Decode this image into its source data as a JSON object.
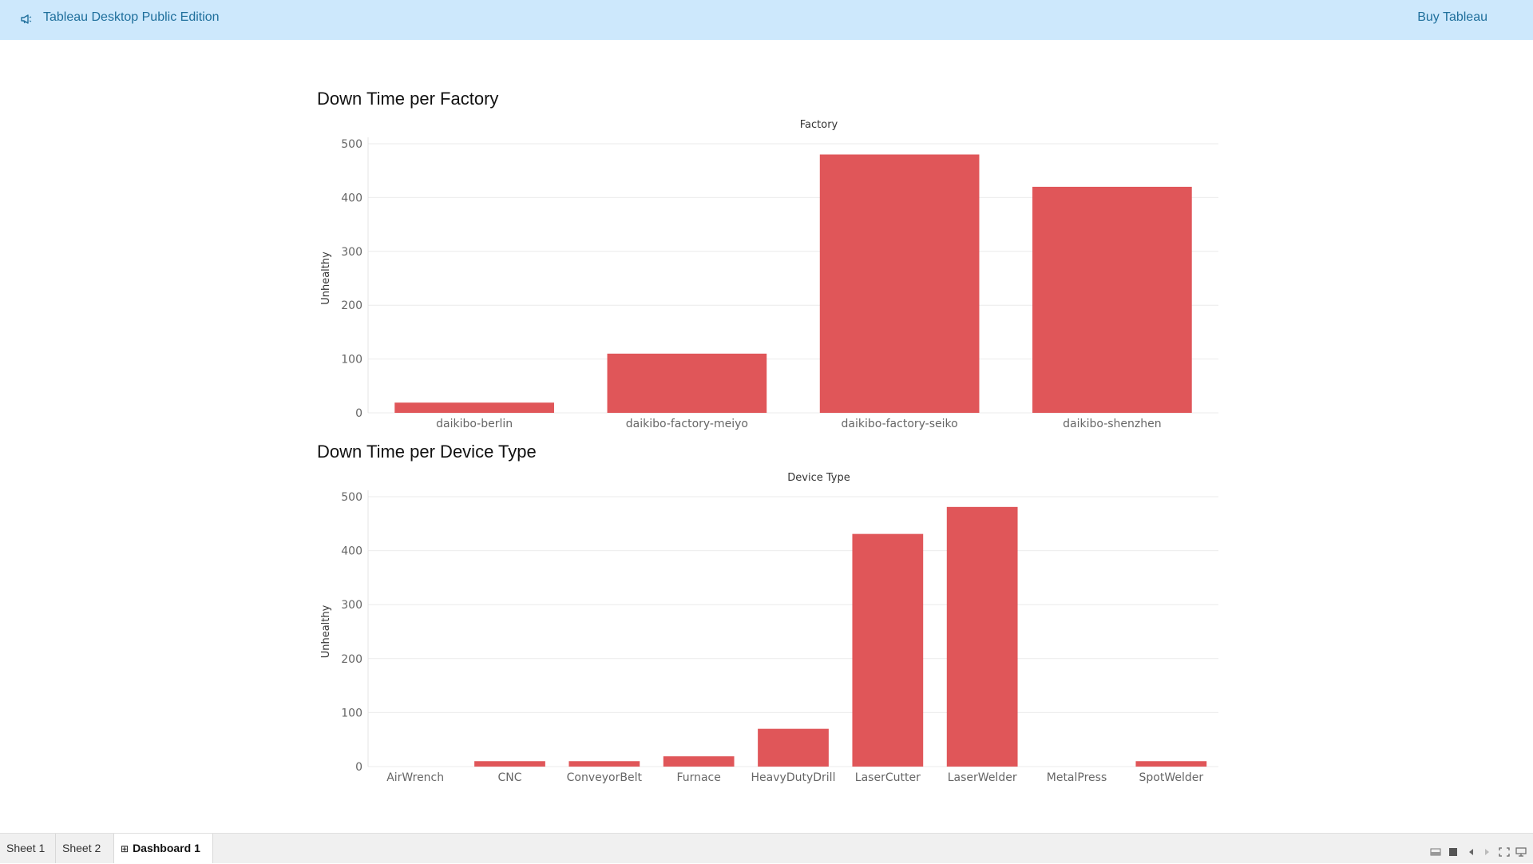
{
  "header": {
    "app_title": "Tableau Desktop Public Edition",
    "buy_label": "Buy Tableau",
    "background_color": "#cde8fc",
    "text_color": "#1f6f9c",
    "icon": "megaphone-icon"
  },
  "bar_color": "#e05659",
  "chart_data": [
    {
      "type": "bar",
      "title": "Down Time per Factory",
      "xlabel": "Factory",
      "ylabel": "Unhealthy",
      "ylim": [
        0,
        500
      ],
      "yticks": [
        0,
        100,
        200,
        300,
        400,
        500
      ],
      "grid": true,
      "categories": [
        "daikibo-berlin",
        "daikibo-factory-meiyo",
        "daikibo-factory-seiko",
        "daikibo-shenzhen"
      ],
      "values": [
        19,
        110,
        480,
        420
      ]
    },
    {
      "type": "bar",
      "title": "Down Time per Device Type",
      "xlabel": "Device Type",
      "ylabel": "Unhealthy",
      "ylim": [
        0,
        500
      ],
      "yticks": [
        0,
        100,
        200,
        300,
        400,
        500
      ],
      "grid": true,
      "categories": [
        "AirWrench",
        "CNC",
        "ConveyorBelt",
        "Furnace",
        "HeavyDutyDrill",
        "LaserCutter",
        "LaserWelder",
        "MetalPress",
        "SpotWelder"
      ],
      "values": [
        0,
        10,
        10,
        19,
        70,
        431,
        481,
        0,
        10
      ]
    }
  ],
  "tabs": [
    {
      "label": "Sheet 1",
      "active": false
    },
    {
      "label": "Sheet 2",
      "active": false
    },
    {
      "label": "Dashboard 1",
      "active": true,
      "icon": "dashboard-grid-icon"
    }
  ],
  "controls": [
    "layout-icon",
    "stop-icon",
    "prev-icon",
    "next-icon",
    "fullscreen-icon",
    "present-icon"
  ]
}
